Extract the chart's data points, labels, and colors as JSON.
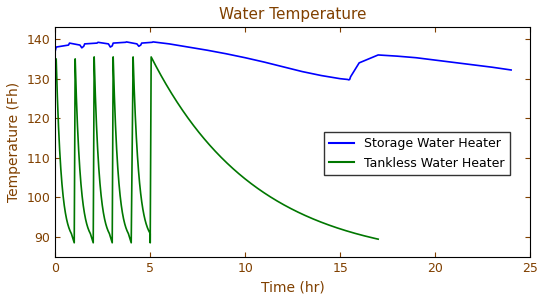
{
  "title": "Water Temperature",
  "xlabel": "Time (hr)",
  "ylabel": "Temperature (Fh)",
  "xlim": [
    0,
    25
  ],
  "ylim": [
    85,
    143
  ],
  "yticks": [
    90,
    100,
    110,
    120,
    130,
    140
  ],
  "xticks": [
    0,
    5,
    10,
    15,
    20,
    25
  ],
  "blue_color": "#0000FF",
  "green_color": "#007700",
  "legend_labels": [
    "Storage Water Heater",
    "Tankless Water Heater"
  ],
  "figsize": [
    5.45,
    3.01
  ],
  "dpi": 100
}
